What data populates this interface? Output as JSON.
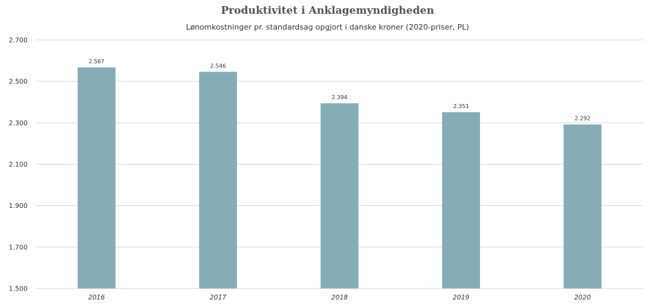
{
  "chart_data": {
    "type": "bar",
    "title": "Produktivitet i Anklagemyndigheden",
    "subtitle": "Lønomkostninger pr. standardsag opgjort i danske kroner (2020-priser, PL)",
    "xlabel": "",
    "ylabel": "",
    "categories": [
      "2016",
      "2017",
      "2018",
      "2019",
      "2020"
    ],
    "values": [
      2567,
      2546,
      2394,
      2351,
      2292
    ],
    "value_labels": [
      "2.567",
      "2.546",
      "2.394",
      "2.351",
      "2.292"
    ],
    "ylim": [
      1500,
      2700
    ],
    "yticks": [
      1500,
      1700,
      1900,
      2100,
      2300,
      2500,
      2700
    ],
    "ytick_labels": [
      "1.500",
      "1.700",
      "1.900",
      "2.100",
      "2.300",
      "2.500",
      "2.700"
    ],
    "grid": true,
    "bar_color": "#86adb6",
    "grid_color": "#d9d9d9"
  }
}
